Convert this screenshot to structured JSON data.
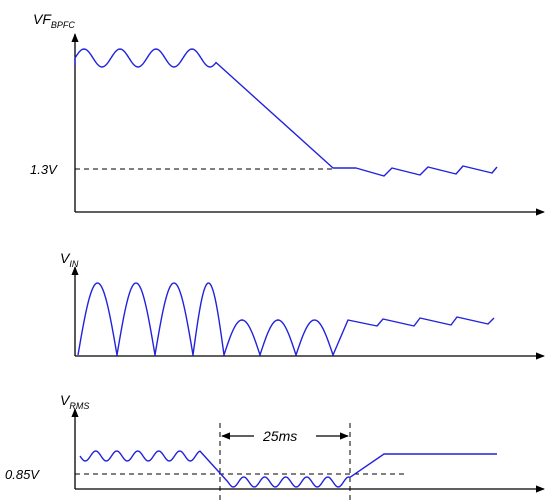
{
  "colors": {
    "trace": "#2222dd",
    "axis": "#000000"
  },
  "panels": {
    "vf": {
      "label_main": "VF",
      "label_sub": "BPFC",
      "level_label": "1.3V"
    },
    "vin": {
      "label_main": "V",
      "label_sub": "IN"
    },
    "vrms": {
      "label_main": "V",
      "label_sub": "RMS",
      "level_label": "0.85V",
      "interval_label": "25ms"
    }
  }
}
